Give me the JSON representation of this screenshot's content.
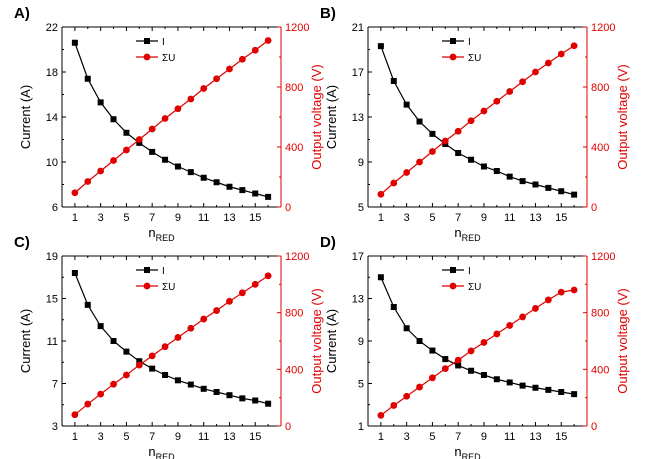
{
  "colors": {
    "current": "#000000",
    "voltage": "#e00000",
    "axis": "#000000"
  },
  "chart_data": [
    {
      "type": "line",
      "panel": "A)",
      "xlabel": "n",
      "xlabel_sub": "RED",
      "ylabel_left": "Current (A)",
      "ylabel_right": "Output voltage (V)",
      "x": [
        1,
        2,
        3,
        4,
        5,
        6,
        7,
        8,
        9,
        10,
        11,
        12,
        13,
        14,
        15,
        16
      ],
      "x_ticks": [
        1,
        3,
        5,
        7,
        9,
        11,
        13,
        15
      ],
      "xlim": [
        0,
        17
      ],
      "ylim_left": [
        6,
        22
      ],
      "yticks_left": [
        6,
        10,
        14,
        18,
        22
      ],
      "ylim_right": [
        0,
        1200
      ],
      "yticks_right": [
        0,
        400,
        800,
        1200
      ],
      "series": [
        {
          "name": "I",
          "axis": "left",
          "marker": "square",
          "color": "#000000",
          "values": [
            20.6,
            17.4,
            15.3,
            13.8,
            12.6,
            11.7,
            10.9,
            10.2,
            9.6,
            9.1,
            8.6,
            8.2,
            7.8,
            7.5,
            7.2,
            6.9
          ]
        },
        {
          "name": "ΣU",
          "axis": "right",
          "marker": "circle",
          "color": "#e00000",
          "values": [
            95,
            170,
            240,
            310,
            380,
            450,
            520,
            590,
            655,
            720,
            790,
            855,
            920,
            985,
            1045,
            1110
          ]
        }
      ]
    },
    {
      "type": "line",
      "panel": "B)",
      "xlabel": "n",
      "xlabel_sub": "RED",
      "ylabel_left": "Current (A)",
      "ylabel_right": "Output voltage (V)",
      "x": [
        1,
        2,
        3,
        4,
        5,
        6,
        7,
        8,
        9,
        10,
        11,
        12,
        13,
        14,
        15,
        16
      ],
      "x_ticks": [
        1,
        3,
        5,
        7,
        9,
        11,
        13,
        15
      ],
      "xlim": [
        0,
        17
      ],
      "ylim_left": [
        5,
        21
      ],
      "yticks_left": [
        5,
        9,
        13,
        17,
        21
      ],
      "ylim_right": [
        0,
        1200
      ],
      "yticks_right": [
        0,
        400,
        800,
        1200
      ],
      "series": [
        {
          "name": "I",
          "axis": "left",
          "marker": "square",
          "color": "#000000",
          "values": [
            19.3,
            16.2,
            14.1,
            12.6,
            11.5,
            10.6,
            9.8,
            9.2,
            8.6,
            8.2,
            7.7,
            7.3,
            7.0,
            6.7,
            6.4,
            6.1
          ]
        },
        {
          "name": "ΣU",
          "axis": "right",
          "marker": "circle",
          "color": "#e00000",
          "values": [
            85,
            160,
            230,
            300,
            370,
            440,
            505,
            575,
            640,
            705,
            770,
            835,
            900,
            960,
            1020,
            1075
          ]
        }
      ]
    },
    {
      "type": "line",
      "panel": "C)",
      "xlabel": "n",
      "xlabel_sub": "RED",
      "ylabel_left": "Current (A)",
      "ylabel_right": "Output voltage (V)",
      "x": [
        1,
        2,
        3,
        4,
        5,
        6,
        7,
        8,
        9,
        10,
        11,
        12,
        13,
        14,
        15,
        16
      ],
      "x_ticks": [
        1,
        3,
        5,
        7,
        9,
        11,
        13,
        15
      ],
      "xlim": [
        0,
        17
      ],
      "ylim_left": [
        3,
        19
      ],
      "yticks_left": [
        3,
        7,
        11,
        15,
        19
      ],
      "ylim_right": [
        0,
        1200
      ],
      "yticks_right": [
        0,
        400,
        800,
        1200
      ],
      "series": [
        {
          "name": "I",
          "axis": "left",
          "marker": "square",
          "color": "#000000",
          "values": [
            17.4,
            14.4,
            12.4,
            11.0,
            10.0,
            9.1,
            8.4,
            7.8,
            7.3,
            6.9,
            6.5,
            6.2,
            5.9,
            5.6,
            5.4,
            5.1
          ]
        },
        {
          "name": "ΣU",
          "axis": "right",
          "marker": "circle",
          "color": "#e00000",
          "values": [
            80,
            155,
            225,
            295,
            360,
            430,
            495,
            560,
            625,
            690,
            755,
            815,
            880,
            940,
            1000,
            1060
          ]
        }
      ]
    },
    {
      "type": "line",
      "panel": "D)",
      "xlabel": "n",
      "xlabel_sub": "RED",
      "ylabel_left": "Current (A)",
      "ylabel_right": "Output voltage (V)",
      "x": [
        1,
        2,
        3,
        4,
        5,
        6,
        7,
        8,
        9,
        10,
        11,
        12,
        13,
        14,
        15,
        16
      ],
      "x_ticks": [
        1,
        3,
        5,
        7,
        9,
        11,
        13,
        15
      ],
      "xlim": [
        0,
        17
      ],
      "ylim_left": [
        1,
        17
      ],
      "yticks_left": [
        1,
        5,
        9,
        13,
        17
      ],
      "ylim_right": [
        0,
        1200
      ],
      "yticks_right": [
        0,
        400,
        800,
        1200
      ],
      "series": [
        {
          "name": "I",
          "axis": "left",
          "marker": "square",
          "color": "#000000",
          "values": [
            15.0,
            12.2,
            10.2,
            9.0,
            8.1,
            7.3,
            6.7,
            6.2,
            5.8,
            5.4,
            5.1,
            4.8,
            4.6,
            4.4,
            4.2,
            4.0
          ]
        },
        {
          "name": "ΣU",
          "axis": "right",
          "marker": "circle",
          "color": "#e00000",
          "values": [
            75,
            145,
            210,
            275,
            340,
            405,
            465,
            530,
            590,
            650,
            710,
            770,
            830,
            890,
            945,
            960
          ]
        }
      ]
    }
  ]
}
